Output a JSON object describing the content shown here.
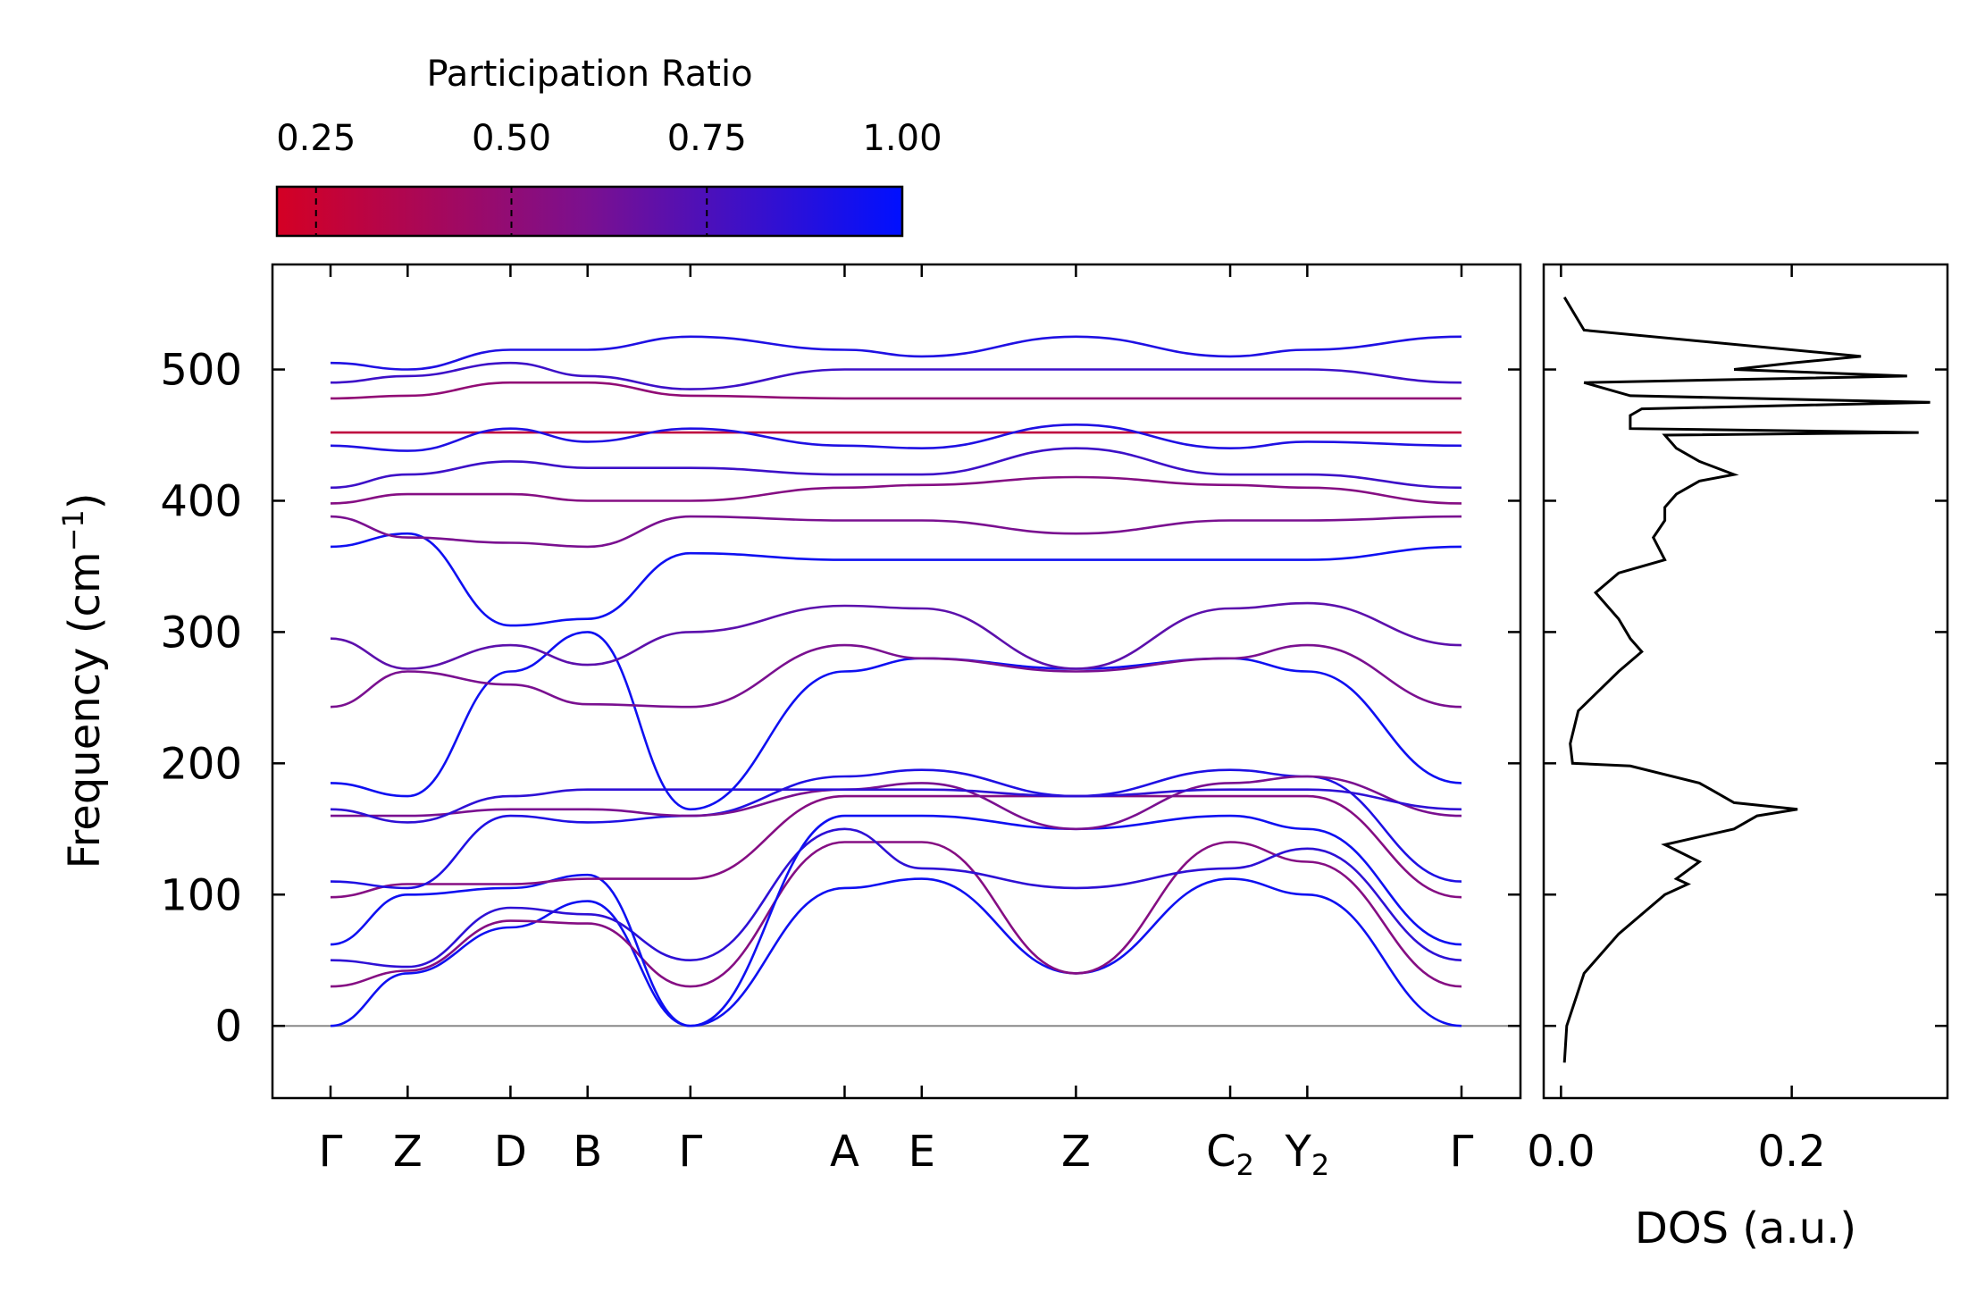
{
  "chart_data": [
    {
      "type": "line",
      "title": "",
      "xlabel": "",
      "ylabel": "Frequency (cm",
      "ylabel_sup": "−1",
      "ylabel_close": ")",
      "ylim": [
        -55,
        580
      ],
      "yticks": [
        0,
        100,
        200,
        300,
        400,
        500
      ],
      "high_symmetry_points": [
        {
          "label": "Γ",
          "sub": "",
          "pos": 0.0
        },
        {
          "label": "Z",
          "sub": "",
          "pos": 0.6
        },
        {
          "label": "D",
          "sub": "",
          "pos": 1.4
        },
        {
          "label": "B",
          "sub": "",
          "pos": 2.0
        },
        {
          "label": "Γ",
          "sub": "",
          "pos": 2.8
        },
        {
          "label": "A",
          "sub": "",
          "pos": 4.0
        },
        {
          "label": "E",
          "sub": "",
          "pos": 4.6
        },
        {
          "label": "Z",
          "sub": "",
          "pos": 5.8
        },
        {
          "label": "C",
          "sub": "2",
          "pos": 7.0
        },
        {
          "label": "Y",
          "sub": "2",
          "pos": 7.6
        },
        {
          "label": "Γ",
          "sub": "",
          "pos": 8.8
        }
      ],
      "bands_note": "phonon branches colored by participation ratio (red = 0.2 localized, blue = 1.0 extended)",
      "bands": [
        {
          "pr": 0.95,
          "freq": [
            0,
            40,
            75,
            95,
            0,
            105,
            112,
            40,
            112,
            100,
            0
          ]
        },
        {
          "pr": 0.55,
          "freq": [
            30,
            42,
            80,
            78,
            30,
            140,
            140,
            40,
            140,
            125,
            30
          ]
        },
        {
          "pr": 0.85,
          "freq": [
            50,
            45,
            90,
            85,
            50,
            150,
            120,
            105,
            120,
            135,
            50
          ]
        },
        {
          "pr": 0.95,
          "freq": [
            62,
            100,
            105,
            115,
            0,
            160,
            160,
            150,
            160,
            150,
            62
          ]
        },
        {
          "pr": 0.55,
          "freq": [
            98,
            108,
            108,
            112,
            112,
            175,
            175,
            175,
            175,
            175,
            98
          ]
        },
        {
          "pr": 0.9,
          "freq": [
            110,
            105,
            160,
            155,
            160,
            190,
            195,
            175,
            195,
            190,
            110
          ]
        },
        {
          "pr": 0.6,
          "freq": [
            160,
            160,
            165,
            165,
            160,
            180,
            185,
            150,
            185,
            190,
            160
          ]
        },
        {
          "pr": 0.85,
          "freq": [
            165,
            155,
            175,
            180,
            180,
            180,
            180,
            175,
            180,
            180,
            165
          ]
        },
        {
          "pr": 0.95,
          "freq": [
            185,
            175,
            270,
            300,
            165,
            270,
            280,
            272,
            280,
            270,
            185
          ]
        },
        {
          "pr": 0.6,
          "freq": [
            243,
            270,
            260,
            245,
            243,
            290,
            280,
            270,
            280,
            290,
            243
          ]
        },
        {
          "pr": 0.7,
          "freq": [
            295,
            272,
            290,
            275,
            300,
            320,
            318,
            272,
            318,
            322,
            290
          ]
        },
        {
          "pr": 0.95,
          "freq": [
            365,
            375,
            305,
            310,
            360,
            355,
            355,
            355,
            355,
            355,
            365
          ]
        },
        {
          "pr": 0.6,
          "freq": [
            388,
            372,
            368,
            365,
            388,
            385,
            385,
            375,
            385,
            385,
            388
          ]
        },
        {
          "pr": 0.55,
          "freq": [
            398,
            405,
            405,
            400,
            400,
            410,
            412,
            418,
            412,
            410,
            398
          ]
        },
        {
          "pr": 0.8,
          "freq": [
            410,
            420,
            430,
            425,
            425,
            420,
            420,
            440,
            420,
            420,
            410
          ]
        },
        {
          "pr": 0.3,
          "freq": [
            452,
            452,
            452,
            452,
            452,
            452,
            452,
            452,
            452,
            452,
            452
          ]
        },
        {
          "pr": 0.9,
          "freq": [
            442,
            438,
            455,
            445,
            455,
            442,
            440,
            458,
            440,
            445,
            442
          ]
        },
        {
          "pr": 0.5,
          "freq": [
            478,
            480,
            490,
            490,
            480,
            478,
            478,
            478,
            478,
            478,
            478
          ]
        },
        {
          "pr": 0.8,
          "freq": [
            490,
            495,
            505,
            495,
            485,
            500,
            500,
            500,
            500,
            500,
            490
          ]
        },
        {
          "pr": 0.9,
          "freq": [
            505,
            500,
            515,
            515,
            525,
            515,
            510,
            525,
            510,
            515,
            525
          ]
        }
      ]
    },
    {
      "type": "line",
      "title": "",
      "xlabel": "DOS (a.u.)",
      "ylabel": "",
      "xlim": [
        -0.015,
        0.335
      ],
      "xticks": [
        "0.0",
        "0.2"
      ],
      "xtick_values": [
        0.0,
        0.2
      ],
      "ylim": [
        -55,
        580
      ],
      "series": [
        {
          "name": "DOS",
          "freq": [
            -28,
            0,
            40,
            70,
            100,
            108,
            112,
            125,
            138,
            150,
            160,
            165,
            170,
            180,
            185,
            198,
            200,
            215,
            240,
            270,
            285,
            295,
            310,
            330,
            345,
            355,
            372,
            385,
            395,
            405,
            415,
            420,
            430,
            440,
            450,
            452,
            455,
            465,
            470,
            475,
            480,
            490,
            495,
            500,
            505,
            510,
            530,
            555
          ],
          "dos": [
            0.003,
            0.005,
            0.02,
            0.05,
            0.09,
            0.11,
            0.1,
            0.12,
            0.09,
            0.15,
            0.17,
            0.205,
            0.15,
            0.13,
            0.12,
            0.06,
            0.01,
            0.008,
            0.015,
            0.05,
            0.07,
            0.06,
            0.05,
            0.03,
            0.05,
            0.09,
            0.08,
            0.09,
            0.09,
            0.1,
            0.12,
            0.15,
            0.12,
            0.1,
            0.09,
            0.31,
            0.06,
            0.06,
            0.07,
            0.32,
            0.06,
            0.02,
            0.3,
            0.15,
            0.2,
            0.26,
            0.02,
            0.003
          ]
        }
      ]
    }
  ],
  "colorbar": {
    "title": "Participation Ratio",
    "range": [
      0.2,
      1.0
    ],
    "ticks": [
      0.25,
      0.5,
      0.75,
      1.0
    ],
    "tick_labels": [
      "0.25",
      "0.50",
      "0.75",
      "1.00"
    ],
    "color_low": "#d40024",
    "color_mid": "#7a1090",
    "color_high": "#0010ff"
  }
}
